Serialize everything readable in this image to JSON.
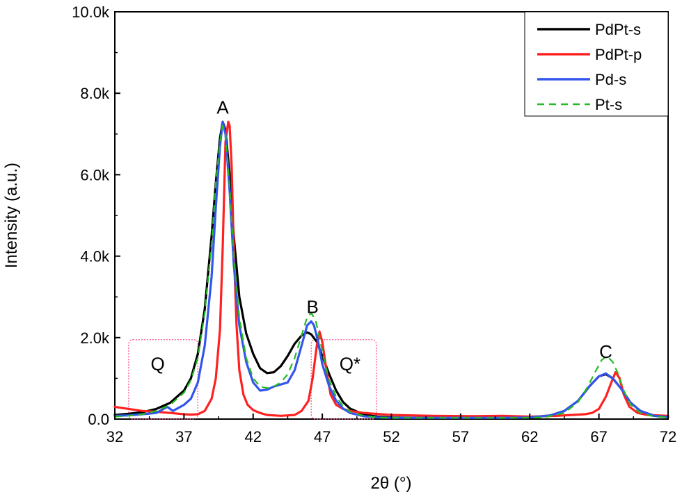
{
  "chart_data": {
    "type": "line",
    "xlabel": "2θ (°)",
    "ylabel": "Intensity (a.u.)",
    "xlim": [
      32,
      72
    ],
    "ylim": [
      0,
      10000
    ],
    "x_ticks": [
      32,
      37,
      42,
      47,
      52,
      57,
      62,
      67,
      72
    ],
    "y_ticks": [
      0,
      2000,
      4000,
      6000,
      8000,
      10000
    ],
    "y_tick_labels": [
      "0.0",
      "2.0k",
      "4.0k",
      "6.0k",
      "8.0k",
      "10.0k"
    ],
    "grid": false,
    "legend_position": "top-right",
    "legend": [
      {
        "name": "PdPt-s",
        "color": "#000000",
        "style": "solid"
      },
      {
        "name": "PdPt-p",
        "color": "#ff2020",
        "style": "solid"
      },
      {
        "name": "Pd-s",
        "color": "#3355ee",
        "style": "solid"
      },
      {
        "name": "Pt-s",
        "color": "#22bb22",
        "style": "dashed"
      }
    ],
    "series": [
      {
        "name": "PdPt-s",
        "color": "#000000",
        "dash": "",
        "x": [
          32,
          33,
          34,
          35,
          36,
          37,
          37.5,
          38,
          38.5,
          39,
          39.3,
          39.6,
          39.8,
          40.0,
          40.3,
          40.6,
          41.0,
          41.5,
          42,
          42.5,
          43,
          43.5,
          44,
          44.5,
          45,
          45.5,
          45.9,
          46.2,
          46.6,
          47,
          47.5,
          48,
          48.5,
          49,
          50,
          51,
          52,
          54,
          57,
          60,
          62,
          63.5,
          64.5,
          65.5,
          66.3,
          67,
          67.5,
          68,
          68.6,
          69.3,
          70,
          71,
          72
        ],
        "y": [
          100,
          130,
          170,
          250,
          400,
          700,
          1000,
          1600,
          2700,
          4500,
          5800,
          6900,
          7300,
          7100,
          6000,
          4500,
          3000,
          2100,
          1600,
          1250,
          1130,
          1150,
          1300,
          1550,
          1850,
          2050,
          2130,
          2080,
          1900,
          1550,
          1100,
          700,
          420,
          260,
          110,
          60,
          40,
          30,
          30,
          30,
          40,
          90,
          200,
          450,
          800,
          1050,
          1100,
          1000,
          750,
          400,
          200,
          80,
          50
        ]
      },
      {
        "name": "PdPt-p",
        "color": "#ff2020",
        "dash": "",
        "x": [
          32,
          33,
          34,
          35,
          36,
          37,
          37.5,
          38,
          38.5,
          39,
          39.3,
          39.6,
          39.8,
          40.0,
          40.2,
          40.3,
          40.45,
          40.6,
          40.8,
          41.0,
          41.3,
          41.6,
          42,
          42.5,
          43,
          44,
          45,
          45.5,
          46,
          46.3,
          46.6,
          46.8,
          47.0,
          47.3,
          47.6,
          48,
          48.5,
          49,
          50,
          52,
          55,
          58,
          60,
          62,
          64,
          65,
          66,
          66.5,
          67,
          67.5,
          67.9,
          68.2,
          68.5,
          68.8,
          69.2,
          69.8,
          70.5,
          72
        ],
        "y": [
          300,
          250,
          200,
          180,
          150,
          120,
          110,
          120,
          200,
          500,
          1000,
          2200,
          4200,
          6800,
          7300,
          7200,
          6200,
          4200,
          2300,
          1200,
          600,
          350,
          220,
          150,
          100,
          80,
          100,
          200,
          450,
          1000,
          1800,
          2150,
          1900,
          1200,
          600,
          350,
          250,
          200,
          150,
          100,
          80,
          70,
          80,
          60,
          80,
          100,
          120,
          150,
          250,
          550,
          900,
          1150,
          1000,
          600,
          300,
          150,
          100,
          80
        ]
      },
      {
        "name": "Pd-s",
        "color": "#3355ee",
        "dash": "",
        "x": [
          32,
          33,
          34,
          35,
          35.8,
          36.2,
          37,
          37.5,
          38,
          38.5,
          39,
          39.3,
          39.6,
          39.8,
          40.0,
          40.3,
          40.6,
          41.0,
          41.5,
          42,
          42.5,
          43,
          43.5,
          44,
          44.5,
          45,
          45.5,
          45.9,
          46.2,
          46.4,
          46.7,
          47,
          47.5,
          48,
          48.5,
          49,
          50,
          51,
          52,
          54,
          57,
          60,
          62,
          63.5,
          64.5,
          65.5,
          66.3,
          67,
          67.5,
          68,
          68.6,
          69.3,
          70,
          71,
          72
        ],
        "y": [
          80,
          90,
          120,
          150,
          300,
          200,
          350,
          500,
          900,
          1800,
          3500,
          5200,
          6700,
          7300,
          7000,
          5600,
          3800,
          2300,
          1400,
          900,
          700,
          720,
          800,
          850,
          900,
          1200,
          1800,
          2300,
          2400,
          2300,
          1900,
          1350,
          800,
          450,
          260,
          150,
          70,
          40,
          30,
          30,
          30,
          30,
          40,
          90,
          200,
          450,
          800,
          1050,
          1120,
          1000,
          750,
          400,
          200,
          80,
          50
        ]
      },
      {
        "name": "Pt-s",
        "color": "#22bb22",
        "dash": "10,7",
        "x": [
          32,
          33,
          34,
          35,
          36,
          37,
          37.5,
          38,
          38.5,
          39,
          39.3,
          39.6,
          39.8,
          40.0,
          40.3,
          40.6,
          41.0,
          41.5,
          42,
          42.5,
          43,
          43.5,
          44,
          44.5,
          45,
          45.5,
          45.9,
          46.2,
          46.5,
          46.8,
          47.1,
          47.5,
          48,
          48.5,
          49,
          50,
          51,
          52,
          55,
          58,
          61,
          63,
          64.5,
          65.5,
          66.2,
          66.8,
          67.2,
          67.6,
          68,
          68.4,
          68.8,
          69.3,
          70,
          71,
          72
        ],
        "y": [
          60,
          80,
          120,
          200,
          350,
          650,
          950,
          1500,
          2600,
          4300,
          5800,
          6800,
          7200,
          7000,
          5700,
          4000,
          2500,
          1500,
          1000,
          800,
          760,
          800,
          900,
          1100,
          1500,
          2050,
          2500,
          2600,
          2450,
          2000,
          1500,
          950,
          550,
          320,
          180,
          80,
          40,
          30,
          30,
          30,
          30,
          40,
          150,
          420,
          800,
          1200,
          1450,
          1550,
          1400,
          1100,
          700,
          350,
          150,
          60,
          40
        ]
      }
    ],
    "annotations": [
      {
        "text": "A",
        "x": 39.8,
        "y": 7500
      },
      {
        "text": "B",
        "x": 46.3,
        "y": 2600
      },
      {
        "text": "C",
        "x": 67.5,
        "y": 1500
      },
      {
        "text": "Q",
        "x": 35.1,
        "y": 1200
      },
      {
        "text": "Q*",
        "x": 49.0,
        "y": 1200
      }
    ],
    "highlight_regions": [
      {
        "label": "Q",
        "x": [
          33.0,
          38.0
        ],
        "y": [
          0,
          1950
        ]
      },
      {
        "label": "Q*",
        "x": [
          46.2,
          50.9
        ],
        "y": [
          0,
          1950
        ]
      }
    ]
  }
}
